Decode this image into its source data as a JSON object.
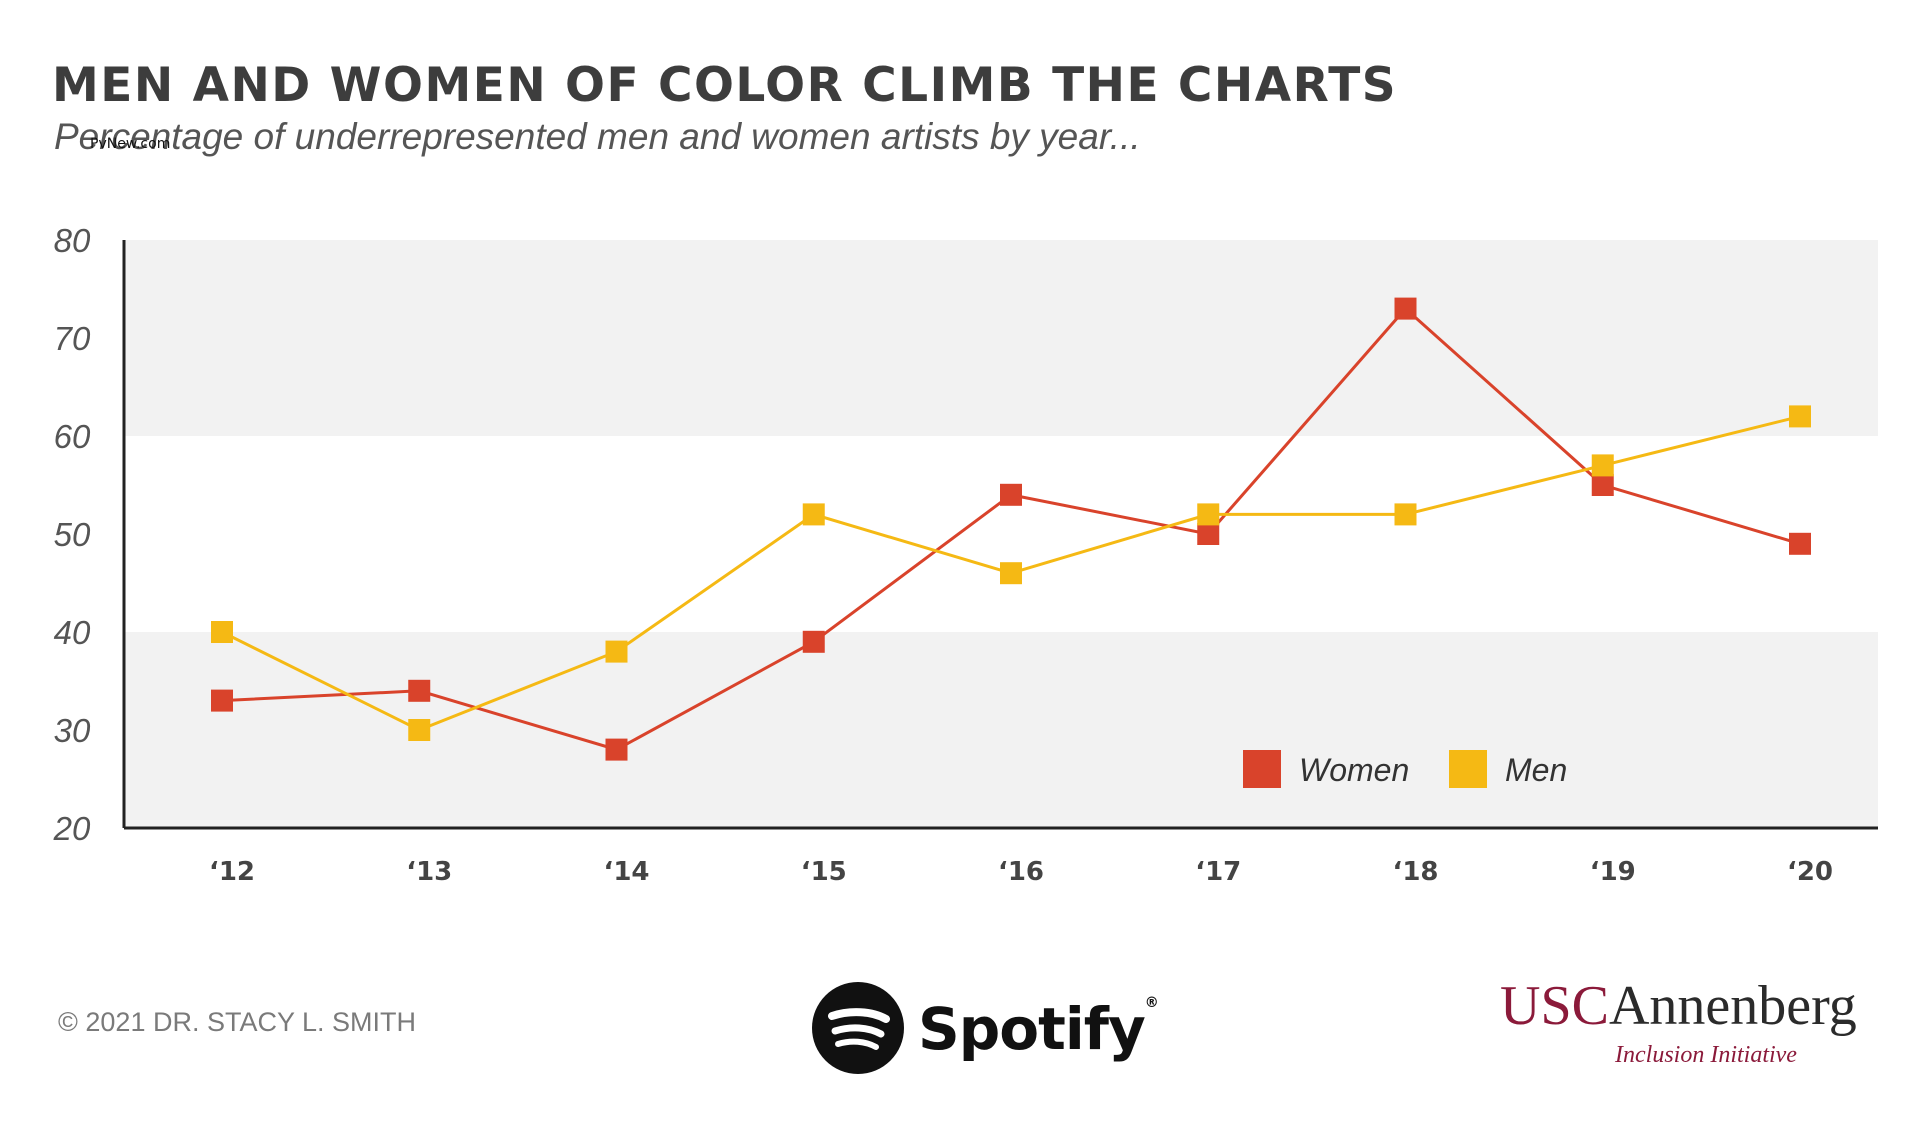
{
  "header": {
    "title": "MEN AND WOMEN OF COLOR CLIMB THE CHARTS",
    "subtitle": "Percentage of underrepresented men and women artists by year...",
    "watermark": "PvNew.com"
  },
  "footer": {
    "copyright": "© 2021 DR. STACY L. SMITH",
    "spotify": "Spotify",
    "spotify_mark": "®",
    "usc_a": "USC",
    "usc_b": "Annenberg",
    "usc_sub": "Inclusion Initiative"
  },
  "colors": {
    "women": "#d9432b",
    "men": "#f5b914",
    "band": "#f2f2f2",
    "axis": "#222222",
    "usc": "#8b1a3a"
  },
  "icons": {
    "spotify": "spotify-logo-icon"
  },
  "chart_data": {
    "type": "line",
    "title": "MEN AND WOMEN OF COLOR CLIMB THE CHARTS",
    "subtitle": "Percentage of underrepresented men and women artists by year...",
    "xlabel": "",
    "ylabel": "",
    "categories": [
      "‘12",
      "‘13",
      "‘14",
      "‘15",
      "‘16",
      "‘17",
      "‘18",
      "‘19",
      "‘20"
    ],
    "ylim": [
      20,
      80
    ],
    "yticks": [
      20,
      30,
      40,
      50,
      60,
      70,
      80
    ],
    "shaded_bands": [
      [
        20,
        40
      ],
      [
        60,
        80
      ]
    ],
    "legend_position": "bottom-right",
    "series": [
      {
        "name": "Women",
        "color": "#d9432b",
        "values": [
          33,
          34,
          28,
          39,
          54,
          50,
          73,
          55,
          49
        ]
      },
      {
        "name": "Men",
        "color": "#f5b914",
        "values": [
          40,
          30,
          38,
          52,
          46,
          52,
          52,
          57,
          62
        ]
      }
    ]
  }
}
